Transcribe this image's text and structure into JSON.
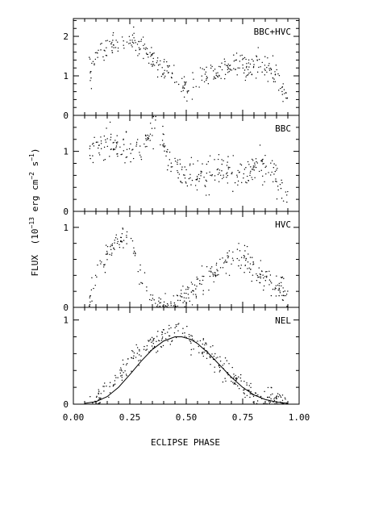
{
  "chart_data": {
    "type": "scatter",
    "xlabel": "ECLIPSE PHASE",
    "ylabel_parts": {
      "flux": "FLUX",
      "unit_open": "(10",
      "exp_flux": "−13",
      "unit_mid": " erg cm",
      "exp_cm": "−2",
      "unit_s": " s",
      "exp_s": "−1",
      "unit_close": ")"
    },
    "xlim": [
      0,
      1
    ],
    "x_ticks": [
      "0.00",
      "0.25",
      "0.50",
      "0.75",
      "1.00"
    ],
    "x_tick_values": [
      0,
      0.25,
      0.5,
      0.75,
      1.0
    ],
    "phase_range": [
      0.07,
      0.95
    ],
    "panels": [
      {
        "label": "BBC+HVC",
        "ylim": [
          0,
          2.45
        ],
        "y_ticks": [
          "0",
          "1",
          "2"
        ],
        "y_tick_values": [
          0,
          1,
          2
        ],
        "trend": [
          [
            0.07,
            1.05
          ],
          [
            0.1,
            1.5
          ],
          [
            0.14,
            1.65
          ],
          [
            0.18,
            1.75
          ],
          [
            0.22,
            1.9
          ],
          [
            0.25,
            1.95
          ],
          [
            0.28,
            1.75
          ],
          [
            0.32,
            1.6
          ],
          [
            0.35,
            1.45
          ],
          [
            0.38,
            1.3
          ],
          [
            0.42,
            1.1
          ],
          [
            0.46,
            0.85
          ],
          [
            0.5,
            0.72
          ],
          [
            0.53,
            0.8
          ],
          [
            0.57,
            0.95
          ],
          [
            0.62,
            1.1
          ],
          [
            0.67,
            1.2
          ],
          [
            0.72,
            1.25
          ],
          [
            0.78,
            1.25
          ],
          [
            0.82,
            1.3
          ],
          [
            0.85,
            1.25
          ],
          [
            0.88,
            1.1
          ],
          [
            0.91,
            0.9
          ],
          [
            0.95,
            0.45
          ]
        ],
        "scatter_spread": 0.15
      },
      {
        "label": "BBC",
        "ylim": [
          0,
          1.6
        ],
        "y_ticks": [
          "0",
          "1"
        ],
        "y_tick_values": [
          0,
          1
        ],
        "trend": [
          [
            0.07,
            0.9
          ],
          [
            0.1,
            1.1
          ],
          [
            0.15,
            1.1
          ],
          [
            0.2,
            1.05
          ],
          [
            0.25,
            1.0
          ],
          [
            0.3,
            1.05
          ],
          [
            0.34,
            1.25
          ],
          [
            0.36,
            1.4
          ],
          [
            0.38,
            1.25
          ],
          [
            0.42,
            0.9
          ],
          [
            0.45,
            0.7
          ],
          [
            0.5,
            0.55
          ],
          [
            0.55,
            0.6
          ],
          [
            0.6,
            0.65
          ],
          [
            0.65,
            0.7
          ],
          [
            0.7,
            0.65
          ],
          [
            0.75,
            0.6
          ],
          [
            0.8,
            0.7
          ],
          [
            0.83,
            0.8
          ],
          [
            0.86,
            0.75
          ],
          [
            0.9,
            0.55
          ],
          [
            0.95,
            0.25
          ]
        ],
        "scatter_spread": 0.13
      },
      {
        "label": "HVC",
        "ylim": [
          0,
          1.2
        ],
        "y_ticks": [
          "0",
          "1"
        ],
        "y_tick_values": [
          0,
          1
        ],
        "trend": [
          [
            0.07,
            0.1
          ],
          [
            0.1,
            0.35
          ],
          [
            0.14,
            0.6
          ],
          [
            0.18,
            0.75
          ],
          [
            0.22,
            0.85
          ],
          [
            0.25,
            0.9
          ],
          [
            0.28,
            0.65
          ],
          [
            0.3,
            0.45
          ],
          [
            0.32,
            0.2
          ],
          [
            0.34,
            0.02
          ],
          [
            0.38,
            0.0
          ],
          [
            0.42,
            0.02
          ],
          [
            0.46,
            0.08
          ],
          [
            0.5,
            0.15
          ],
          [
            0.55,
            0.25
          ],
          [
            0.6,
            0.38
          ],
          [
            0.64,
            0.5
          ],
          [
            0.68,
            0.62
          ],
          [
            0.72,
            0.65
          ],
          [
            0.76,
            0.58
          ],
          [
            0.8,
            0.45
          ],
          [
            0.85,
            0.35
          ],
          [
            0.9,
            0.28
          ],
          [
            0.95,
            0.15
          ]
        ],
        "scatter_spread": 0.08
      },
      {
        "label": "NEL",
        "ylim": [
          0,
          1.15
        ],
        "y_ticks": [
          "0",
          "1"
        ],
        "y_tick_values": [
          0,
          1
        ],
        "trend": [
          [
            0.07,
            0.03
          ],
          [
            0.1,
            0.05
          ],
          [
            0.15,
            0.15
          ],
          [
            0.2,
            0.32
          ],
          [
            0.25,
            0.5
          ],
          [
            0.3,
            0.62
          ],
          [
            0.35,
            0.72
          ],
          [
            0.4,
            0.8
          ],
          [
            0.46,
            0.85
          ],
          [
            0.5,
            0.82
          ],
          [
            0.55,
            0.72
          ],
          [
            0.6,
            0.58
          ],
          [
            0.65,
            0.45
          ],
          [
            0.7,
            0.32
          ],
          [
            0.75,
            0.22
          ],
          [
            0.8,
            0.12
          ],
          [
            0.85,
            0.07
          ],
          [
            0.9,
            0.04
          ],
          [
            0.95,
            0.02
          ]
        ],
        "scatter_spread": 0.07,
        "model_curve": [
          [
            0.05,
            0.01
          ],
          [
            0.1,
            0.03
          ],
          [
            0.15,
            0.09
          ],
          [
            0.2,
            0.2
          ],
          [
            0.25,
            0.35
          ],
          [
            0.3,
            0.51
          ],
          [
            0.35,
            0.65
          ],
          [
            0.4,
            0.75
          ],
          [
            0.45,
            0.8
          ],
          [
            0.48,
            0.8
          ],
          [
            0.52,
            0.77
          ],
          [
            0.55,
            0.72
          ],
          [
            0.6,
            0.6
          ],
          [
            0.65,
            0.46
          ],
          [
            0.7,
            0.32
          ],
          [
            0.75,
            0.2
          ],
          [
            0.8,
            0.11
          ],
          [
            0.85,
            0.055
          ],
          [
            0.9,
            0.025
          ],
          [
            0.95,
            0.01
          ]
        ]
      }
    ],
    "points_per_panel": 320
  }
}
